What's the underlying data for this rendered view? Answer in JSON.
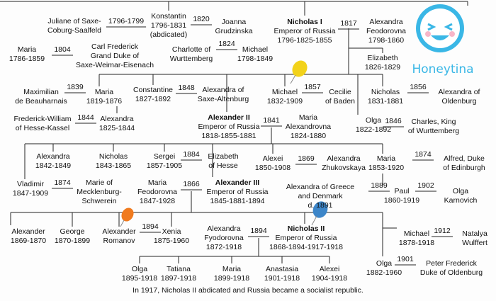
{
  "logo": {
    "text": "Honeytina"
  },
  "people": [
    {
      "lines": [
        "Juliane of Saxe-",
        "Coburg-Saalfeld"
      ]
    },
    {
      "lines": [
        "Konstantin",
        "1796-1831",
        "(abdicated)"
      ]
    },
    {
      "lines": [
        "Joanna",
        "Grudzinska"
      ]
    },
    {
      "lines": [
        "Nicholas I",
        "Emperor of Russia",
        "1796-1825-1855"
      ],
      "emphasis": true
    },
    {
      "lines": [
        "Alexandra",
        "Feodorovna",
        "1798-1860"
      ]
    },
    {
      "lines": [
        "Maria",
        "1786-1859"
      ]
    },
    {
      "lines": [
        "Carl Frederick",
        "Grand Duke of",
        "Saxe-Weimar-Eisenach"
      ]
    },
    {
      "lines": [
        "Charlotte of",
        "Wurttemberg"
      ]
    },
    {
      "lines": [
        "Michael",
        "1798-1849"
      ]
    },
    {
      "lines": [
        "Elizabeth",
        "1826-1829"
      ]
    },
    {
      "lines": [
        "Maximilian",
        "de Beauharnais"
      ]
    },
    {
      "lines": [
        "Maria",
        "1819-1876"
      ]
    },
    {
      "lines": [
        "Constantine",
        "1827-1892"
      ]
    },
    {
      "lines": [
        "Alexandra of",
        "Saxe-Altenburg"
      ]
    },
    {
      "lines": [
        "Michael",
        "1832-1909"
      ]
    },
    {
      "lines": [
        "Cecilie",
        "of Baden"
      ]
    },
    {
      "lines": [
        "Nicholas",
        "1831-1881"
      ]
    },
    {
      "lines": [
        "Alexandra of",
        "Oldenburg"
      ]
    },
    {
      "lines": [
        "Frederick-William",
        "of Hesse-Kassel"
      ]
    },
    {
      "lines": [
        "Alexandra",
        "1825-1844"
      ]
    },
    {
      "lines": [
        "Alexander II",
        "Emperor of Russia",
        "1818-1855-1881"
      ],
      "emphasis": true
    },
    {
      "lines": [
        "Maria",
        "Alexandrovna",
        "1824-1880"
      ]
    },
    {
      "lines": [
        "Olga",
        "1822-1892"
      ]
    },
    {
      "lines": [
        "Charles, King",
        "of Wurttemberg"
      ]
    },
    {
      "lines": [
        "Alexandra",
        "1842-1849"
      ]
    },
    {
      "lines": [
        "Nicholas",
        "1843-1865"
      ]
    },
    {
      "lines": [
        "Sergei",
        "1857-1905"
      ]
    },
    {
      "lines": [
        "Elizabeth",
        "of Hesse"
      ]
    },
    {
      "lines": [
        "Alexei",
        "1850-1908"
      ]
    },
    {
      "lines": [
        "Alexandra",
        "Zhukovskaya"
      ]
    },
    {
      "lines": [
        "Maria",
        "1853-1920"
      ]
    },
    {
      "lines": [
        "Alfred, Duke",
        "of Edinburgh"
      ]
    },
    {
      "lines": [
        "Vladimir",
        "1847-1909"
      ]
    },
    {
      "lines": [
        "Marie of",
        "Mecklenburg-",
        "Schwerein"
      ]
    },
    {
      "lines": [
        "Maria",
        "Feodorovna",
        "1847-1928"
      ]
    },
    {
      "lines": [
        "Alexander III",
        "Emperor of Russia",
        "1845-1881-1894"
      ],
      "emphasis": true
    },
    {
      "lines": [
        "Alexandra of Greece",
        "and Denmark",
        "d. 1891"
      ]
    },
    {
      "lines": [
        "Paul",
        "1860-1919"
      ]
    },
    {
      "lines": [
        "Olga",
        "Karnovich"
      ]
    },
    {
      "lines": [
        "Alexander",
        "1869-1870"
      ]
    },
    {
      "lines": [
        "George",
        "1870-1899"
      ]
    },
    {
      "lines": [
        "Alexander",
        "Romanov"
      ]
    },
    {
      "lines": [
        "Xenia",
        "1875-1960"
      ]
    },
    {
      "lines": [
        "Alexandra",
        "Fyodorovna",
        "1872-1918"
      ]
    },
    {
      "lines": [
        "Nicholas II",
        "Emperor of Russia",
        "1868-1894-1917-1918"
      ],
      "emphasis": true
    },
    {
      "lines": [
        "Michael",
        "1878-1918"
      ]
    },
    {
      "lines": [
        "Natalya",
        "Wulffert"
      ]
    },
    {
      "lines": [
        "Olga",
        "1895-1918"
      ]
    },
    {
      "lines": [
        "Tatiana",
        "1897-1918"
      ]
    },
    {
      "lines": [
        "Maria",
        "1899-1918"
      ]
    },
    {
      "lines": [
        "Anastasia",
        "1901-1918"
      ]
    },
    {
      "lines": [
        "Alexei",
        "1904-1918"
      ]
    },
    {
      "lines": [
        "Olga",
        "1882-1960"
      ]
    },
    {
      "lines": [
        "Peter Frederick",
        "Duke of Oldenburg"
      ]
    }
  ],
  "marriages": [
    "1796-1799",
    "1820",
    "1817",
    "1804",
    "1824",
    "1839",
    "1848",
    "1857",
    "1856",
    "1844",
    "1841",
    "1846",
    "1884",
    "1869",
    "1874",
    "1874",
    "1866",
    "1889",
    "1902",
    "1894",
    "1894",
    "1912",
    "1901"
  ],
  "footnote": "In 1917, Nicholas II abdicated and Russia became a socialist republic."
}
